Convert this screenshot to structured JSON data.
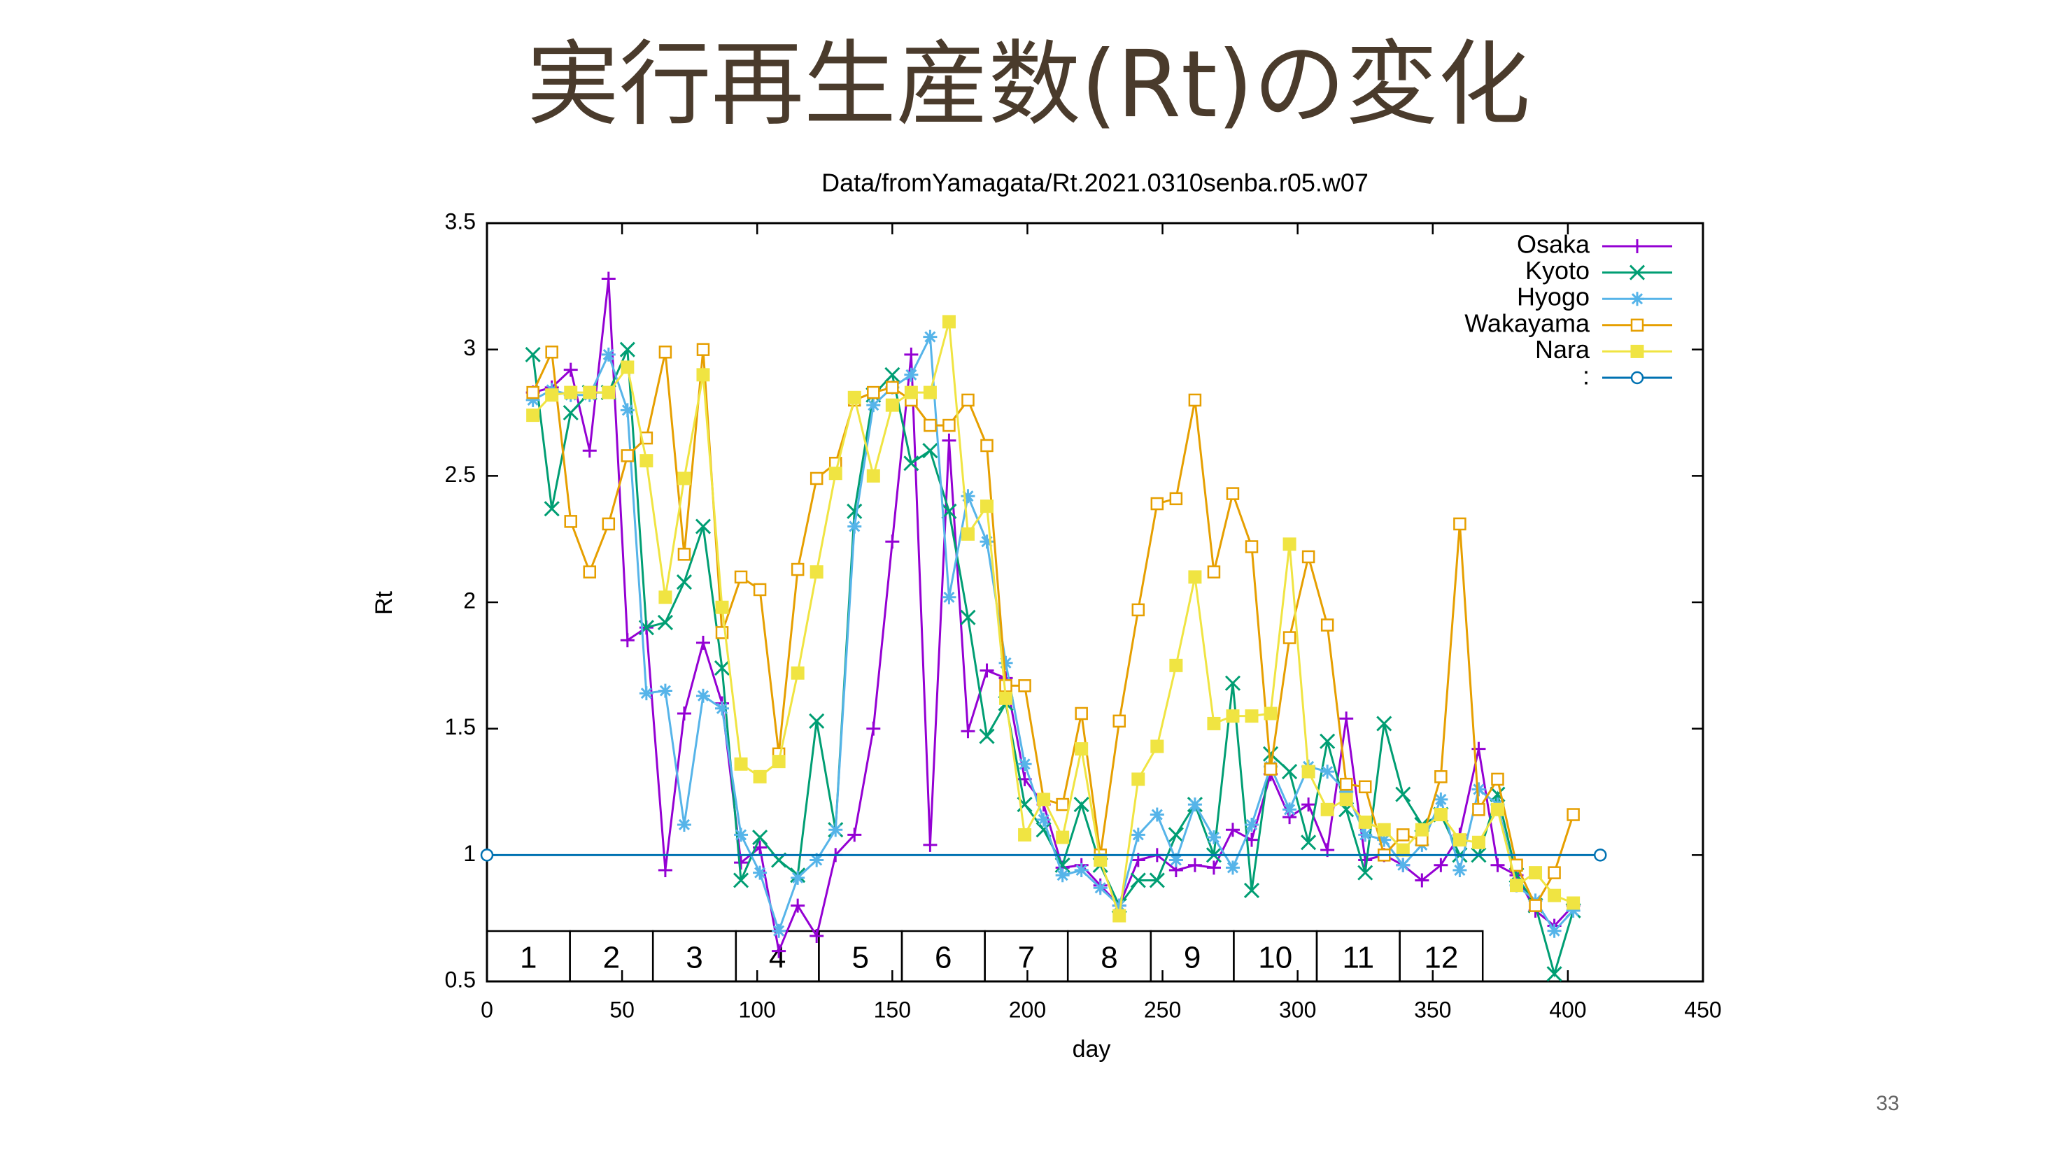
{
  "page_title": "実行再生産数(Rt)の変化",
  "page_number": "33",
  "chart_data": {
    "type": "line",
    "title": "Data/fromYamagata/Rt.2021.0310senba.r05.w07",
    "x_label": "day",
    "y_label": "Rt",
    "xlim": [
      0,
      450
    ],
    "xticks": [
      0,
      50,
      100,
      150,
      200,
      250,
      300,
      350,
      400,
      450
    ],
    "ylim": [
      0.5,
      3.5
    ],
    "yticks": [
      0.5,
      1,
      1.5,
      2,
      2.5,
      3,
      3.5
    ],
    "legend": "top-right",
    "period_labels": [
      "1",
      "2",
      "3",
      "4",
      "5",
      "6",
      "7",
      "8",
      "9",
      "10",
      "11",
      "12"
    ],
    "x": [
      17,
      24,
      31,
      38,
      45,
      52,
      59,
      66,
      73,
      80,
      87,
      94,
      101,
      108,
      115,
      122,
      129,
      136,
      143,
      150,
      157,
      164,
      171,
      178,
      185,
      192,
      199,
      206,
      213,
      220,
      227,
      234,
      241,
      248,
      255,
      262,
      269,
      276,
      283,
      290,
      297,
      304,
      311,
      318,
      325,
      332,
      339,
      346,
      353,
      360,
      367,
      374,
      381,
      388,
      395,
      402
    ],
    "series": [
      {
        "name": "Osaka",
        "color": "#9400d3",
        "marker": "plus",
        "values": [
          2.83,
          2.85,
          2.92,
          2.6,
          3.28,
          1.85,
          1.9,
          0.94,
          1.56,
          1.84,
          1.6,
          0.97,
          1.03,
          0.62,
          0.8,
          0.68,
          1.0,
          1.08,
          1.5,
          2.24,
          2.98,
          1.04,
          2.64,
          1.49,
          1.73,
          1.7,
          1.3,
          1.2,
          0.95,
          0.96,
          0.88,
          0.8,
          0.98,
          1.0,
          0.94,
          0.96,
          0.95,
          1.1,
          1.06,
          1.32,
          1.15,
          1.2,
          1.02,
          1.54,
          0.98,
          1.0,
          0.96,
          0.9,
          0.96,
          1.08,
          1.42,
          0.96,
          0.92,
          0.78,
          0.72,
          0.8
        ]
      },
      {
        "name": "Kyoto",
        "color": "#009e73",
        "marker": "cross",
        "values": [
          2.98,
          2.37,
          2.75,
          2.83,
          2.83,
          3.0,
          1.9,
          1.92,
          2.08,
          2.3,
          1.74,
          0.9,
          1.07,
          0.98,
          0.92,
          1.53,
          1.1,
          2.36,
          2.82,
          2.9,
          2.55,
          2.6,
          2.36,
          1.94,
          1.47,
          1.6,
          1.2,
          1.1,
          0.96,
          1.2,
          0.96,
          0.8,
          0.9,
          0.9,
          1.08,
          1.2,
          1.0,
          1.68,
          0.86,
          1.4,
          1.33,
          1.05,
          1.45,
          1.18,
          0.93,
          1.52,
          1.24,
          1.12,
          1.16,
          1.0,
          1.0,
          1.24,
          0.92,
          0.8,
          0.53,
          0.78
        ]
      },
      {
        "name": "Hyogo",
        "color": "#56b4e9",
        "marker": "star",
        "values": [
          2.8,
          2.84,
          2.82,
          2.82,
          2.98,
          2.76,
          1.64,
          1.65,
          1.12,
          1.63,
          1.58,
          1.08,
          0.93,
          0.7,
          0.91,
          0.98,
          1.1,
          2.3,
          2.78,
          2.85,
          2.9,
          3.05,
          2.02,
          2.42,
          2.24,
          1.76,
          1.36,
          1.14,
          0.92,
          0.94,
          0.87,
          0.8,
          1.08,
          1.16,
          0.98,
          1.2,
          1.07,
          0.95,
          1.12,
          1.35,
          1.18,
          1.35,
          1.33,
          1.25,
          1.08,
          1.06,
          0.96,
          1.04,
          1.22,
          0.94,
          1.26,
          1.2,
          0.88,
          0.82,
          0.7,
          0.78
        ]
      },
      {
        "name": "Wakayama",
        "color": "#e69f00",
        "marker": "open-square",
        "values": [
          2.83,
          2.99,
          2.32,
          2.12,
          2.31,
          2.58,
          2.65,
          2.99,
          2.19,
          3.0,
          1.88,
          2.1,
          2.05,
          1.4,
          2.13,
          2.49,
          2.55,
          2.8,
          2.83,
          2.85,
          2.8,
          2.7,
          2.7,
          2.8,
          2.62,
          1.67,
          1.67,
          1.22,
          1.2,
          1.56,
          1.0,
          1.53,
          1.97,
          2.39,
          2.41,
          2.8,
          2.12,
          2.43,
          2.22,
          1.34,
          1.86,
          2.18,
          1.91,
          1.28,
          1.27,
          1.0,
          1.08,
          1.06,
          1.31,
          2.31,
          1.18,
          1.3,
          0.96,
          0.8,
          0.93,
          1.16
        ]
      },
      {
        "name": "Nara",
        "color": "#f0e442",
        "marker": "filled-square",
        "values": [
          2.74,
          2.82,
          2.83,
          2.83,
          2.83,
          2.93,
          2.56,
          2.02,
          2.49,
          2.9,
          1.98,
          1.36,
          1.31,
          1.37,
          1.72,
          2.12,
          2.51,
          2.81,
          2.5,
          2.78,
          2.83,
          2.83,
          3.11,
          2.27,
          2.38,
          1.62,
          1.08,
          1.22,
          1.07,
          1.42,
          0.98,
          0.76,
          1.3,
          1.43,
          1.75,
          2.1,
          1.52,
          1.55,
          1.55,
          1.56,
          2.23,
          1.33,
          1.18,
          1.22,
          1.13,
          1.1,
          1.02,
          1.1,
          1.16,
          1.06,
          1.05,
          1.18,
          0.88,
          0.93,
          0.84,
          0.81
        ]
      },
      {
        "name": ":",
        "color": "#0072b2",
        "marker": "open-circle",
        "x": [
          0,
          412
        ],
        "values": [
          1,
          1
        ]
      }
    ]
  }
}
